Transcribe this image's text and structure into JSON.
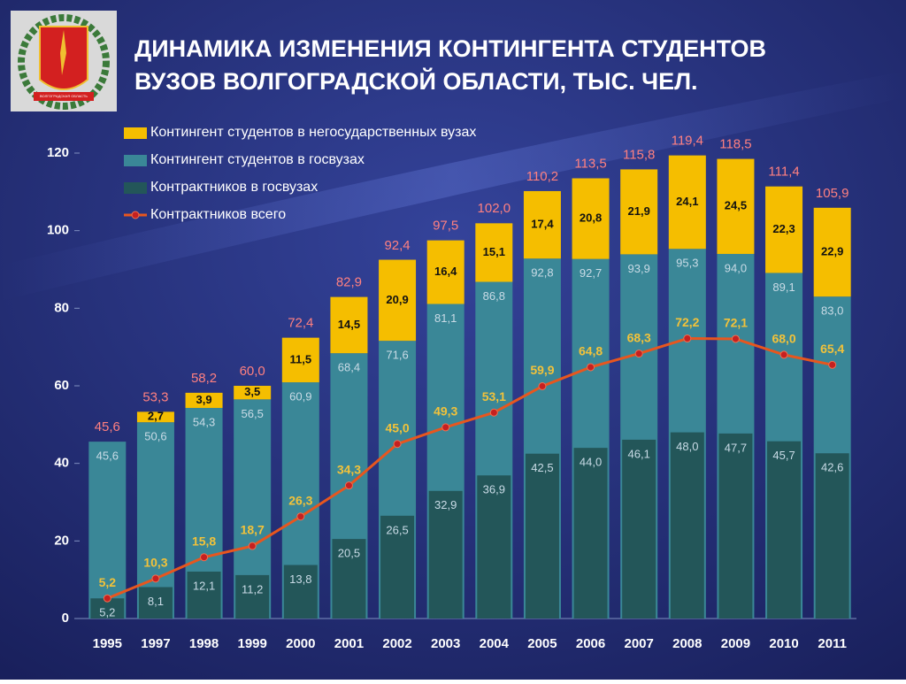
{
  "chart_data": {
    "type": "bar",
    "title": [
      "ДИНАМИКА ИЗМЕНЕНИЯ КОНТИНГЕНТА СТУДЕНТОВ",
      "ВУЗОВ ВОЛГОГРАДСКОЙ ОБЛАСТИ, ТЫС. ЧЕЛ."
    ],
    "emblem_label": "ВОЛГОГРАДСКАЯ ОБЛАСТЬ",
    "categories": [
      "1995",
      "1997",
      "1998",
      "1999",
      "2000",
      "2001",
      "2002",
      "2003",
      "2004",
      "2005",
      "2006",
      "2007",
      "2008",
      "2009",
      "2010",
      "2011"
    ],
    "series": [
      {
        "name": "Контингент студентов в негосударственных вузах",
        "color": "#f5be00",
        "values": [
          null,
          2.7,
          3.9,
          3.5,
          11.5,
          14.5,
          20.9,
          16.4,
          15.1,
          17.4,
          20.8,
          21.9,
          24.1,
          24.5,
          22.3,
          22.9
        ],
        "value_labels": [
          null,
          "2,7",
          "3,9",
          "3,5",
          "11,5",
          "14,5",
          "20,9",
          "16,4",
          "15,1",
          "17,4",
          "20,8",
          "21,9",
          "24,1",
          "24,5",
          "22,3",
          "22,9"
        ]
      },
      {
        "name": "Контингент студентов в госвузах",
        "color": "#3a8797",
        "values": [
          45.6,
          50.6,
          54.3,
          56.5,
          60.9,
          68.4,
          71.6,
          81.1,
          86.8,
          92.8,
          92.7,
          93.9,
          95.3,
          94.0,
          89.1,
          83.0
        ],
        "value_labels": [
          "45,6",
          "50,6",
          "54,3",
          "56,5",
          "60,9",
          "68,4",
          "71,6",
          "81,1",
          "86,8",
          "92,8",
          "92,7",
          "93,9",
          "95,3",
          "94,0",
          "89,1",
          "83,0"
        ]
      },
      {
        "name": "Контрактников в госвузах",
        "color": "#235659",
        "values": [
          5.2,
          8.1,
          12.1,
          11.2,
          13.8,
          20.5,
          26.5,
          32.9,
          36.9,
          42.5,
          44.0,
          46.1,
          48.0,
          47.7,
          45.7,
          42.6
        ],
        "value_labels": [
          "5,2",
          "8,1",
          "12,1",
          "11,2",
          "13,8",
          "20,5",
          "26,5",
          "32,9",
          "36,9",
          "42,5",
          "44,0",
          "46,1",
          "48,0",
          "47,7",
          "45,7",
          "42,6"
        ]
      },
      {
        "name": "Контрактников всего",
        "color": "#e8561e",
        "type": "line",
        "values": [
          5.2,
          10.3,
          15.8,
          18.7,
          26.3,
          34.3,
          45.0,
          49.3,
          53.1,
          59.9,
          64.8,
          68.3,
          72.2,
          72.1,
          68.0,
          65.4
        ],
        "value_labels": [
          "5,2",
          "10,3",
          "15,8",
          "18,7",
          "26,3",
          "34,3",
          "45,0",
          "49,3",
          "53,1",
          "59,9",
          "64,8",
          "68,3",
          "72,2",
          "72,1",
          "68,0",
          "65,4"
        ]
      }
    ],
    "totals": {
      "values": [
        45.6,
        53.3,
        58.2,
        60.0,
        72.4,
        82.9,
        92.4,
        97.5,
        102.0,
        110.2,
        113.5,
        115.8,
        119.4,
        118.5,
        111.4,
        105.9
      ],
      "value_labels": [
        "45,6",
        "53,3",
        "58,2",
        "60,0",
        "72,4",
        "82,9",
        "92,4",
        "97,5",
        "102,0",
        "110,2",
        "113,5",
        "115,8",
        "119,4",
        "118,5",
        "111,4",
        "105,9"
      ]
    },
    "ylim": [
      0,
      120
    ],
    "yticks": [
      0,
      20,
      40,
      60,
      80,
      100,
      120
    ]
  }
}
